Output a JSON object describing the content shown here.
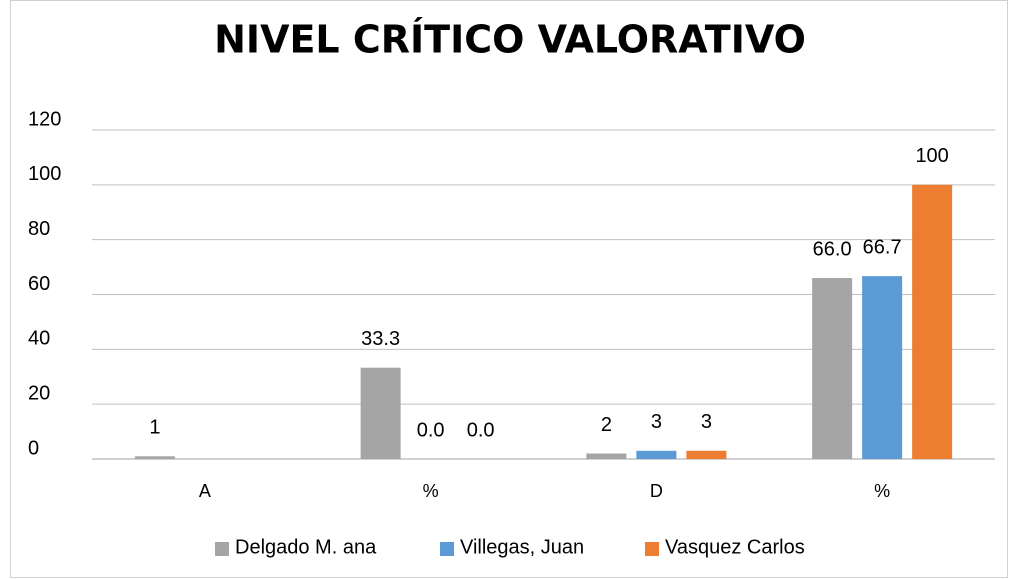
{
  "chart_data": {
    "type": "bar",
    "title": "NIVEL CRÍTICO VALORATIVO",
    "categories": [
      "A",
      "%",
      "D",
      "%"
    ],
    "series": [
      {
        "name": "Delgado M. ana",
        "color": "#a5a5a5",
        "values": [
          1,
          33.3,
          2,
          66.0
        ],
        "value_labels": [
          "1",
          "33.3",
          "2",
          "66.0"
        ]
      },
      {
        "name": "Villegas, Juan",
        "color": "#5b9bd5",
        "values": [
          null,
          0.0,
          3,
          66.7
        ],
        "value_labels": [
          null,
          "0.0",
          "3",
          "66.7"
        ]
      },
      {
        "name": "Vasquez Carlos",
        "color": "#ed7d31",
        "values": [
          null,
          0.0,
          3,
          100
        ],
        "value_labels": [
          null,
          "0.0",
          "3",
          "100"
        ]
      }
    ],
    "ylim": [
      0,
      120
    ],
    "yticks": [
      0,
      20,
      40,
      60,
      80,
      100,
      120
    ],
    "grid": true,
    "legend": "bottom"
  }
}
